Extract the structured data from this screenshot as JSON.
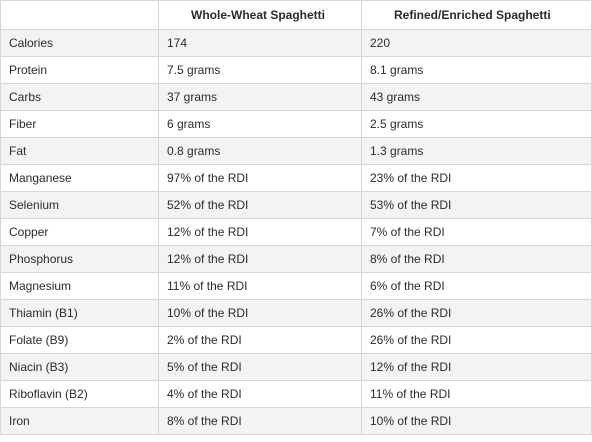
{
  "table": {
    "headers": [
      "",
      "Whole-Wheat Spaghetti",
      "Refined/Enriched Spaghetti"
    ],
    "rows": [
      [
        "Calories",
        "174",
        "220"
      ],
      [
        "Protein",
        "7.5 grams",
        "8.1 grams"
      ],
      [
        "Carbs",
        "37 grams",
        "43 grams"
      ],
      [
        "Fiber",
        "6 grams",
        "2.5 grams"
      ],
      [
        "Fat",
        "0.8 grams",
        "1.3 grams"
      ],
      [
        "Manganese",
        "97% of the RDI",
        "23% of the RDI"
      ],
      [
        "Selenium",
        "52% of the RDI",
        "53% of the RDI"
      ],
      [
        "Copper",
        "12% of the RDI",
        "7% of the RDI"
      ],
      [
        "Phosphorus",
        "12% of the RDI",
        "8% of the RDI"
      ],
      [
        "Magnesium",
        "11% of the RDI",
        "6% of the RDI"
      ],
      [
        "Thiamin (B1)",
        "10% of the RDI",
        "26% of the RDI"
      ],
      [
        "Folate (B9)",
        "2% of the RDI",
        "26% of the RDI"
      ],
      [
        "Niacin (B3)",
        "5% of the RDI",
        "12% of the RDI"
      ],
      [
        "Riboflavin (B2)",
        "4% of the RDI",
        "11% of the RDI"
      ],
      [
        "Iron",
        "8% of the RDI",
        "10% of the RDI"
      ]
    ]
  }
}
